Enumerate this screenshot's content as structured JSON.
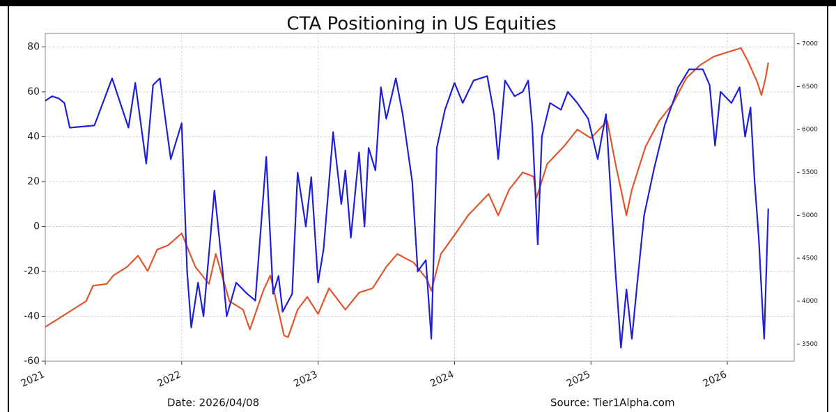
{
  "chart_data": {
    "type": "line",
    "title": "CTA Positioning in US Equities",
    "annotations": [
      "Date: 2026/04/08",
      "Source: Tier1Alpha.com"
    ],
    "xlim": [
      2021,
      2026.49
    ],
    "xticks": [
      2021,
      2022,
      2023,
      2024,
      2025,
      2026
    ],
    "ylim": [
      -60,
      86
    ],
    "yticks": [
      -60,
      -40,
      -20,
      0,
      20,
      40,
      60,
      80
    ],
    "y2lim": [
      3300,
      7120
    ],
    "y2ticks": [
      3500,
      4000,
      4500,
      5000,
      5500,
      6000,
      6500,
      7000
    ],
    "grid": true,
    "series": [
      {
        "color": "#1f1fd8",
        "x": [
          2021.0,
          2021.05,
          2021.1,
          2021.14,
          2021.18,
          2021.36,
          2021.49,
          2021.61,
          2021.66,
          2021.74,
          2021.79,
          2021.84,
          2021.92,
          2022.0,
          2022.04,
          2022.07,
          2022.12,
          2022.16,
          2022.24,
          2022.3,
          2022.33,
          2022.4,
          2022.48,
          2022.54,
          2022.62,
          2022.67,
          2022.71,
          2022.74,
          2022.81,
          2022.85,
          2022.91,
          2022.95,
          2023.0,
          2023.04,
          2023.11,
          2023.17,
          2023.2,
          2023.24,
          2023.3,
          2023.34,
          2023.37,
          2023.42,
          2023.46,
          2023.5,
          2023.57,
          2023.62,
          2023.69,
          2023.73,
          2023.79,
          2023.83,
          2023.87,
          2023.93,
          2024.0,
          2024.06,
          2024.14,
          2024.24,
          2024.29,
          2024.32,
          2024.37,
          2024.44,
          2024.5,
          2024.54,
          2024.57,
          2024.61,
          2024.64,
          2024.7,
          2024.78,
          2024.83,
          2024.9,
          2024.98,
          2025.05,
          2025.11,
          2025.18,
          2025.22,
          2025.26,
          2025.3,
          2025.34,
          2025.39,
          2025.46,
          2025.54,
          2025.64,
          2025.72,
          2025.82,
          2025.87,
          2025.91,
          2025.95,
          2026.03,
          2026.09,
          2026.13,
          2026.17,
          2026.2,
          2026.23,
          2026.26,
          2026.27,
          2026.3
        ],
        "values": [
          56,
          58,
          57,
          55,
          44,
          45,
          66,
          44,
          64,
          28,
          63,
          66,
          30,
          46,
          -20,
          -45,
          -25,
          -40,
          16,
          -20,
          -40,
          -25,
          -30,
          -33,
          31,
          -30,
          -22,
          -38,
          -30,
          24,
          0,
          22,
          -25,
          -10,
          42,
          10,
          25,
          -5,
          33,
          0,
          35,
          25,
          62,
          48,
          66,
          50,
          20,
          -20,
          -15,
          -50,
          35,
          52,
          64,
          55,
          65,
          67,
          50,
          30,
          65,
          58,
          60,
          65,
          45,
          -8,
          40,
          55,
          52,
          60,
          55,
          48,
          30,
          50,
          -20,
          -54,
          -28,
          -50,
          -25,
          5,
          25,
          45,
          62,
          70,
          70,
          63,
          36,
          60,
          55,
          62,
          40,
          53,
          20,
          -5,
          -40,
          -50,
          8
        ]
      },
      {
        "color": "#e0562a",
        "axis": "y2",
        "x": [
          2021.0,
          2021.1,
          2021.2,
          2021.3,
          2021.35,
          2021.45,
          2021.5,
          2021.6,
          2021.68,
          2021.75,
          2021.82,
          2021.9,
          2022.0,
          2022.1,
          2022.2,
          2022.25,
          2022.35,
          2022.45,
          2022.5,
          2022.6,
          2022.65,
          2022.75,
          2022.78,
          2022.85,
          2022.92,
          2023.0,
          2023.08,
          2023.2,
          2023.3,
          2023.4,
          2023.5,
          2023.58,
          2023.7,
          2023.8,
          2023.83,
          2023.9,
          2024.0,
          2024.1,
          2024.25,
          2024.32,
          2024.4,
          2024.5,
          2024.58,
          2024.6,
          2024.68,
          2024.8,
          2024.9,
          2025.0,
          2025.12,
          2025.18,
          2025.26,
          2025.3,
          2025.4,
          2025.5,
          2025.6,
          2025.7,
          2025.8,
          2025.9,
          2026.0,
          2026.1,
          2026.15,
          2026.22,
          2026.25,
          2026.28,
          2026.3
        ],
        "values": [
          3700,
          3800,
          3900,
          4000,
          4180,
          4200,
          4300,
          4400,
          4530,
          4350,
          4600,
          4650,
          4790,
          4400,
          4200,
          4550,
          4000,
          3900,
          3670,
          4130,
          4300,
          3600,
          3580,
          3900,
          4050,
          3850,
          4150,
          3900,
          4100,
          4150,
          4400,
          4550,
          4450,
          4250,
          4120,
          4550,
          4770,
          5000,
          5250,
          5000,
          5300,
          5500,
          5450,
          5200,
          5600,
          5800,
          6000,
          5900,
          6100,
          5600,
          5000,
          5300,
          5800,
          6100,
          6300,
          6600,
          6750,
          6850,
          6900,
          6950,
          6800,
          6550,
          6400,
          6600,
          6780
        ]
      }
    ]
  }
}
